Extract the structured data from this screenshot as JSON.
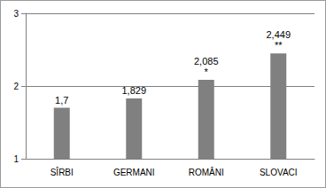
{
  "chart_data": {
    "type": "bar",
    "categories": [
      "SÎRBI",
      "GERMANI",
      "ROMÂNI",
      "SLOVACI"
    ],
    "values": [
      1.7,
      1.829,
      2.085,
      2.449
    ],
    "value_labels": [
      "1,7",
      "1,829",
      "2,085",
      "2,449"
    ],
    "annotations": [
      null,
      null,
      "*",
      "**"
    ],
    "color": "#808080",
    "ylim": [
      1,
      3
    ],
    "yticks": [
      1,
      2,
      3
    ],
    "grid": true,
    "data_labels": true
  }
}
